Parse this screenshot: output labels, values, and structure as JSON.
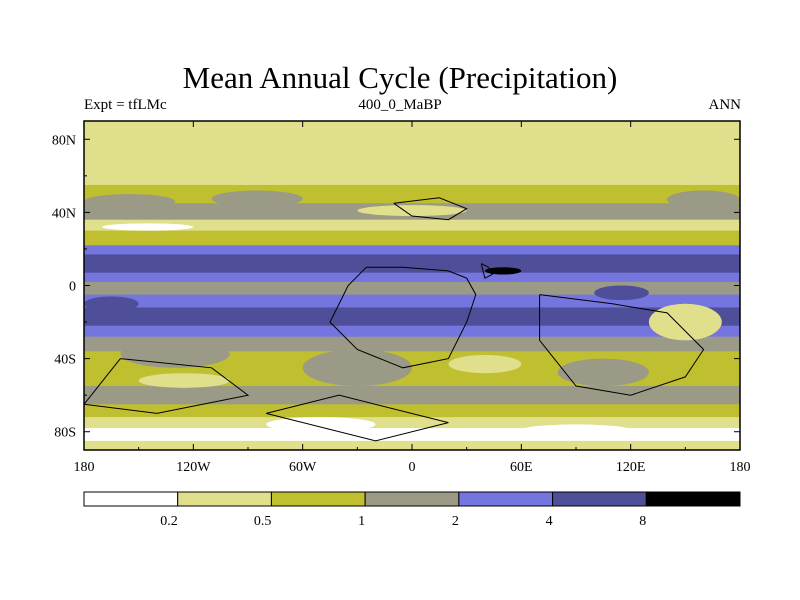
{
  "chart_data": {
    "type": "filled-contour-map",
    "title": "Mean Annual Cycle (Precipitation)",
    "left_string": "Expt = tfLMc",
    "center_string": "400_0_MaBP",
    "right_string": "ANN",
    "x_ticks": [
      "180",
      "120W",
      "60W",
      "0",
      "60E",
      "120E",
      "180"
    ],
    "x_tick_values": [
      -180,
      -120,
      -60,
      0,
      60,
      120,
      180
    ],
    "y_ticks": [
      "80N",
      "40N",
      "0",
      "40S",
      "80S"
    ],
    "y_tick_values": [
      80,
      40,
      0,
      -40,
      -80
    ],
    "xlim": [
      -180,
      180
    ],
    "ylim": [
      -90,
      90
    ],
    "levels": [
      "0.2",
      "0.5",
      "1",
      "2",
      "4",
      "8"
    ],
    "colors": [
      "#ffffff",
      "#dfdf8c",
      "#bfbf2f",
      "#9a9a87",
      "#7575df",
      "#4f4f99",
      "#000000"
    ],
    "bands": [
      {
        "lat": [
          90,
          72
        ],
        "level": 1
      },
      {
        "lat": [
          72,
          55
        ],
        "level": 1
      },
      {
        "lat": [
          55,
          45
        ],
        "level": 2
      },
      {
        "lat": [
          45,
          36
        ],
        "level": 3
      },
      {
        "lat": [
          36,
          30
        ],
        "level": 1
      },
      {
        "lat": [
          30,
          22
        ],
        "level": 2
      },
      {
        "lat": [
          22,
          17
        ],
        "level": 4
      },
      {
        "lat": [
          17,
          7
        ],
        "level": 5
      },
      {
        "lat": [
          7,
          2
        ],
        "level": 4
      },
      {
        "lat": [
          2,
          -5
        ],
        "level": 3
      },
      {
        "lat": [
          -5,
          -12
        ],
        "level": 4
      },
      {
        "lat": [
          -12,
          -22
        ],
        "level": 5
      },
      {
        "lat": [
          -22,
          -28
        ],
        "level": 4
      },
      {
        "lat": [
          -28,
          -36
        ],
        "level": 3
      },
      {
        "lat": [
          -36,
          -45
        ],
        "level": 2
      },
      {
        "lat": [
          -45,
          -55
        ],
        "level": 2
      },
      {
        "lat": [
          -55,
          -65
        ],
        "level": 3
      },
      {
        "lat": [
          -65,
          -72
        ],
        "level": 2
      },
      {
        "lat": [
          -72,
          -78
        ],
        "level": 1
      },
      {
        "lat": [
          -78,
          -85
        ],
        "level": 0
      },
      {
        "lat": [
          -85,
          -90
        ],
        "level": 1
      }
    ],
    "patches": [
      {
        "lon": [
          -180,
          -130
        ],
        "lat": [
          50,
          42
        ],
        "level": 3
      },
      {
        "lon": [
          -110,
          -60
        ],
        "lat": [
          52,
          43
        ],
        "level": 3
      },
      {
        "lon": [
          -30,
          30
        ],
        "lat": [
          44,
          38
        ],
        "level": 1
      },
      {
        "lon": [
          140,
          180
        ],
        "lat": [
          52,
          42
        ],
        "level": 3
      },
      {
        "lon": [
          -170,
          -120
        ],
        "lat": [
          34,
          30
        ],
        "level": 0
      },
      {
        "lon": [
          -160,
          -100
        ],
        "lat": [
          -30,
          -45
        ],
        "level": 3
      },
      {
        "lon": [
          -60,
          0
        ],
        "lat": [
          -35,
          -55
        ],
        "level": 3
      },
      {
        "lon": [
          130,
          170
        ],
        "lat": [
          -10,
          -30
        ],
        "level": 1
      },
      {
        "lon": [
          20,
          60
        ],
        "lat": [
          -38,
          -48
        ],
        "level": 1
      },
      {
        "lon": [
          -150,
          -100
        ],
        "lat": [
          -48,
          -56
        ],
        "level": 1
      },
      {
        "lon": [
          80,
          130
        ],
        "lat": [
          -40,
          -55
        ],
        "level": 3
      },
      {
        "lon": [
          -80,
          -20
        ],
        "lat": [
          -72,
          -80
        ],
        "level": 0
      },
      {
        "lon": [
          60,
          120
        ],
        "lat": [
          -76,
          -82
        ],
        "level": 0
      },
      {
        "lon": [
          -180,
          -150
        ],
        "lat": [
          -6,
          -14
        ],
        "level": 5
      },
      {
        "lon": [
          40,
          60
        ],
        "lat": [
          10,
          6
        ],
        "level": 6
      },
      {
        "lon": [
          100,
          130
        ],
        "lat": [
          0,
          -8
        ],
        "level": 5
      }
    ],
    "coastlines": [
      [
        [
          -25,
          10
        ],
        [
          -5,
          10
        ],
        [
          20,
          8
        ],
        [
          30,
          4
        ],
        [
          35,
          -5
        ],
        [
          30,
          -20
        ],
        [
          20,
          -40
        ],
        [
          -5,
          -45
        ],
        [
          -30,
          -35
        ],
        [
          -45,
          -20
        ],
        [
          -35,
          0
        ],
        [
          -25,
          10
        ]
      ],
      [
        [
          -10,
          45
        ],
        [
          15,
          48
        ],
        [
          30,
          42
        ],
        [
          20,
          36
        ],
        [
          0,
          38
        ],
        [
          -10,
          45
        ]
      ],
      [
        [
          70,
          -5
        ],
        [
          110,
          -10
        ],
        [
          140,
          -15
        ],
        [
          160,
          -35
        ],
        [
          150,
          -50
        ],
        [
          120,
          -60
        ],
        [
          90,
          -55
        ],
        [
          70,
          -30
        ],
        [
          70,
          -5
        ]
      ],
      [
        [
          -160,
          -40
        ],
        [
          -110,
          -45
        ],
        [
          -90,
          -60
        ],
        [
          -140,
          -70
        ],
        [
          -180,
          -65
        ],
        [
          -160,
          -40
        ]
      ],
      [
        [
          -80,
          -70
        ],
        [
          -20,
          -85
        ],
        [
          20,
          -75
        ],
        [
          -40,
          -60
        ],
        [
          -80,
          -70
        ]
      ],
      [
        [
          38,
          12
        ],
        [
          42,
          10
        ],
        [
          44,
          6
        ],
        [
          40,
          4
        ],
        [
          38,
          12
        ]
      ]
    ]
  }
}
